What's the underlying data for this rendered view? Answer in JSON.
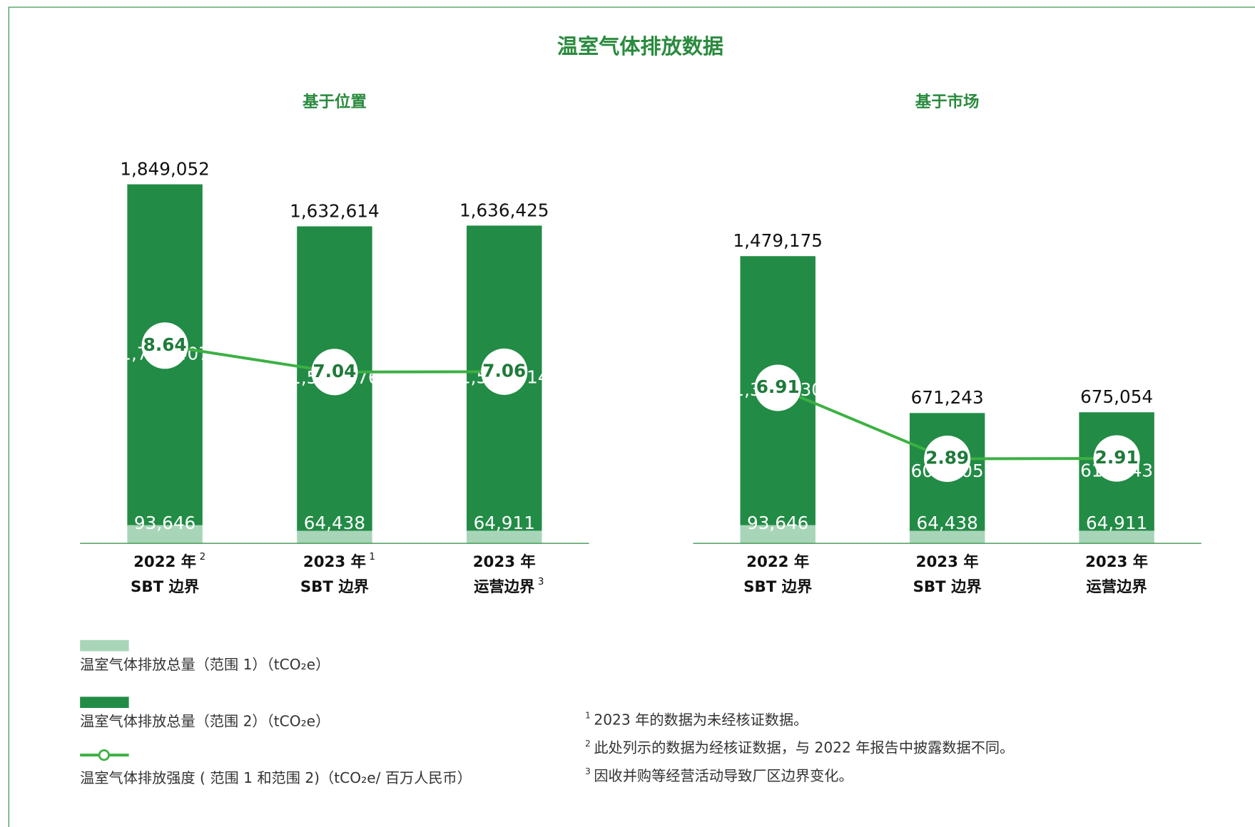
{
  "title": "温室气体排放数据",
  "chart_data": [
    {
      "type": "bar",
      "subtitle": "基于位置",
      "categories": [
        [
          [
            "2022 年",
            "2"
          ],
          [
            "SBT 边界"
          ]
        ],
        [
          [
            "2023 年",
            "1"
          ],
          [
            "SBT 边界"
          ]
        ],
        [
          [
            "2023 年"
          ],
          [
            "运营边界",
            "3"
          ]
        ]
      ],
      "series": [
        {
          "name": "温室气体排放总量（范围 1）（tCO₂e）",
          "color": "#a8d5b8",
          "values": [
            93646,
            64438,
            64911
          ],
          "value_labels": [
            "93,646",
            "64,438",
            "64,911"
          ]
        },
        {
          "name": "温室气体排放总量（范围 2）（tCO₂e）",
          "color": "#228b45",
          "values": [
            1755407,
            1568176,
            1571514
          ],
          "value_labels": [
            "1,755,407",
            "1,568,176",
            "1,571,514"
          ]
        },
        {
          "name": "温室气体排放强度 ( 范围 1 和范围 2)（tCO₂e/ 百万人民币）",
          "type": "line",
          "axis": "y2",
          "color": "#3cb043",
          "values": [
            8.64,
            7.04,
            7.06
          ]
        }
      ],
      "totals": {
        "values": [
          1849052,
          1632614,
          1636425
        ],
        "value_labels": [
          "1,849,052",
          "1,632,614",
          "1,636,425"
        ]
      },
      "ylim": [
        0,
        2000000
      ],
      "y2lim": [
        -3.35,
        20.2
      ]
    },
    {
      "type": "bar",
      "subtitle": "基于市场",
      "categories": [
        [
          [
            "2022 年"
          ],
          [
            "SBT 边界"
          ]
        ],
        [
          [
            "2023 年"
          ],
          [
            "SBT 边界"
          ]
        ],
        [
          [
            "2023 年"
          ],
          [
            "运营边界"
          ]
        ]
      ],
      "series": [
        {
          "color": "#a8d5b8",
          "values": [
            93646,
            64438,
            64911
          ],
          "value_labels": [
            "93,646",
            "64,438",
            "64,911"
          ]
        },
        {
          "color": "#228b45",
          "values": [
            1385530,
            606805,
            610143
          ],
          "value_labels": [
            "1,385,530",
            "606,805",
            "610,143"
          ]
        },
        {
          "type": "line",
          "axis": "y2",
          "color": "#3cb043",
          "values": [
            6.91,
            2.89,
            2.91
          ]
        }
      ],
      "totals": {
        "values": [
          1479175,
          671243,
          675054
        ],
        "value_labels": [
          "1,479,175",
          "671,243",
          "675,054"
        ]
      },
      "ylim": [
        0,
        2000000
      ],
      "y2lim": [
        -1.9,
        20.1
      ]
    }
  ],
  "footnotes": [
    {
      "mark": "1",
      "text": "2023 年的数据为未经核证数据。"
    },
    {
      "mark": "2",
      "text": "此处列示的数据为经核证数据，与 2022 年报告中披露数据不同。"
    },
    {
      "mark": "3",
      "text": "因收并购等经营活动导致厂区边界变化。"
    }
  ]
}
